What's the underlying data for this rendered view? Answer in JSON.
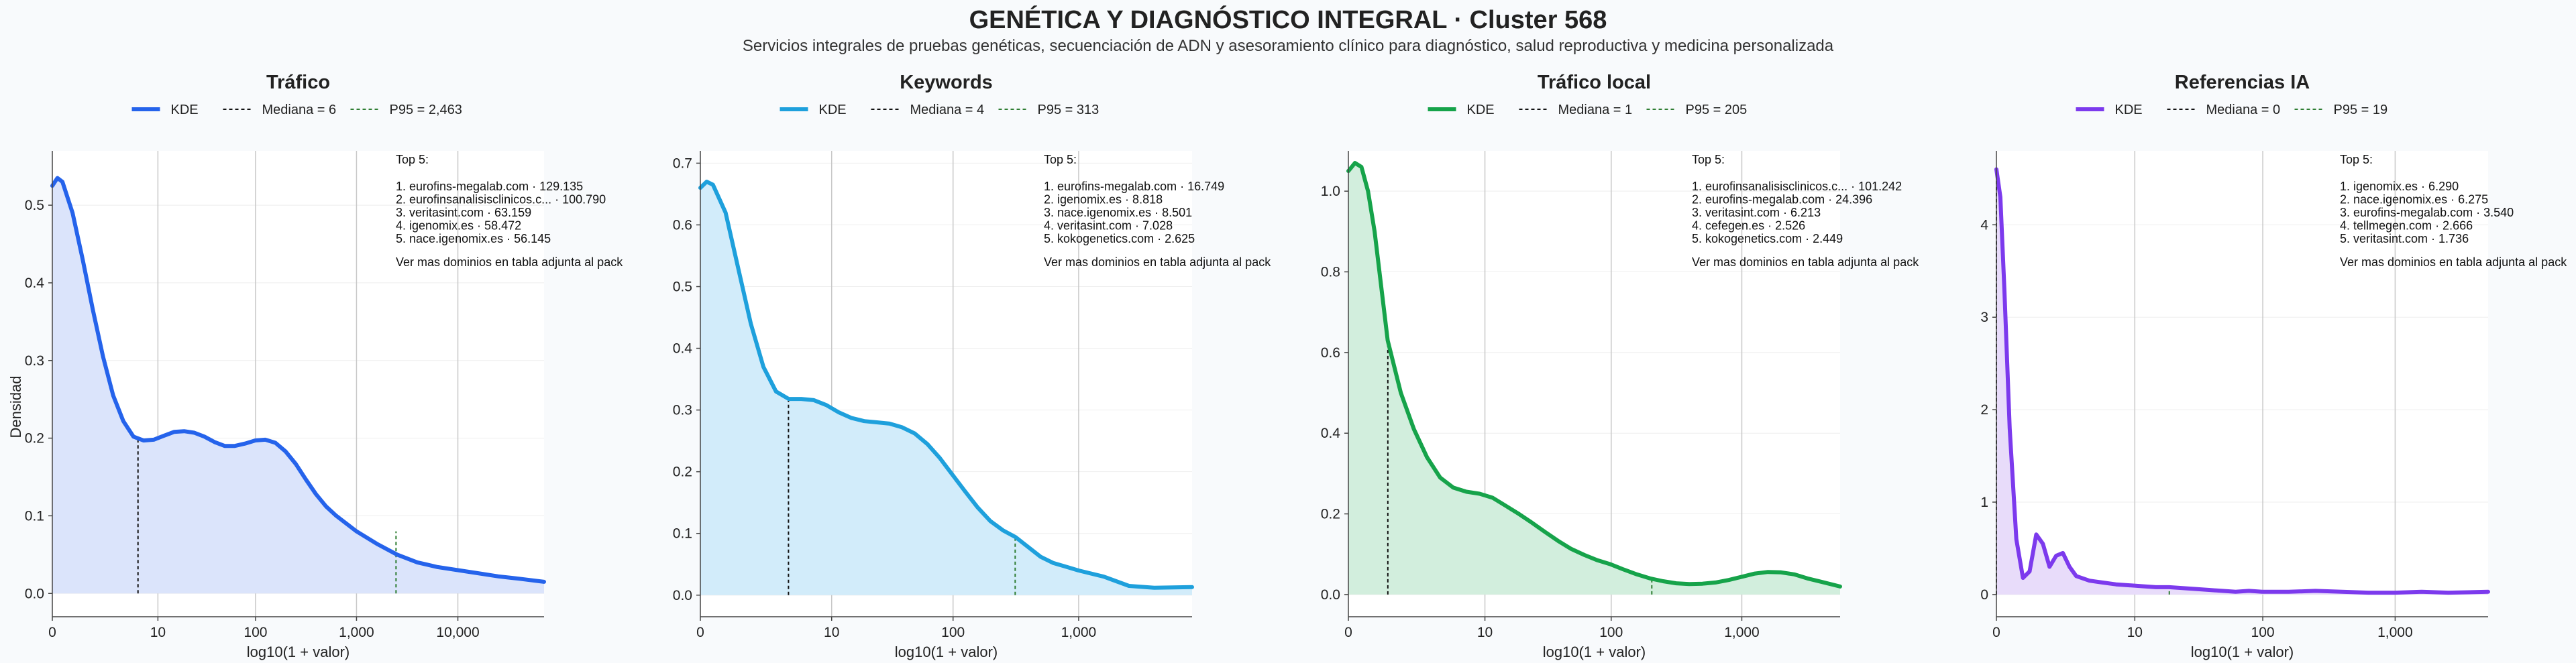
{
  "title": "GENÉTICA Y DIAGNÓSTICO INTEGRAL · Cluster 568",
  "subtitle": "Servicios integrales de pruebas genéticas, secuenciación de ADN y asesoramiento clínico para diagnóstico, salud reproductiva y medicina personalizada",
  "shared_ylabel": "Densidad",
  "chart_data": [
    {
      "type": "area",
      "title": "Tráfico",
      "color": "#2563eb",
      "fill": "#dbe4fb",
      "xlabel": "log10(1 + valor)",
      "ylabel": "Densidad",
      "xlim": [
        0,
        4.85
      ],
      "ylim": [
        -0.03,
        0.57
      ],
      "xscale": "log10(1+x)",
      "xticks": [
        {
          "v": 0,
          "label": "0"
        },
        {
          "v": 1.0414,
          "label": "10"
        },
        {
          "v": 2.0043,
          "label": "100"
        },
        {
          "v": 3.0004,
          "label": "1,000"
        },
        {
          "v": 4.0,
          "label": "10,000"
        }
      ],
      "yticks": [
        {
          "v": 0,
          "label": "0.0"
        },
        {
          "v": 0.1,
          "label": "0.1"
        },
        {
          "v": 0.2,
          "label": "0.2"
        },
        {
          "v": 0.3,
          "label": "0.3"
        },
        {
          "v": 0.4,
          "label": "0.4"
        },
        {
          "v": 0.5,
          "label": "0.5"
        }
      ],
      "legend": {
        "kde": "KDE",
        "median": "Mediana = 6",
        "p95": "P95 = 2,463"
      },
      "median_x": 0.845,
      "median_y": 0.198,
      "p95_x": 3.39,
      "p95_y": 0.08,
      "x": [
        0,
        0.05,
        0.1,
        0.2,
        0.3,
        0.4,
        0.5,
        0.6,
        0.7,
        0.8,
        0.9,
        1.0,
        1.1,
        1.2,
        1.3,
        1.4,
        1.5,
        1.6,
        1.7,
        1.8,
        1.9,
        2.0,
        2.1,
        2.2,
        2.3,
        2.4,
        2.5,
        2.6,
        2.7,
        2.8,
        2.9,
        3.0,
        3.2,
        3.4,
        3.6,
        3.8,
        4.0,
        4.2,
        4.4,
        4.6,
        4.85
      ],
      "y": [
        0.525,
        0.535,
        0.53,
        0.49,
        0.43,
        0.365,
        0.305,
        0.255,
        0.222,
        0.202,
        0.197,
        0.198,
        0.203,
        0.208,
        0.209,
        0.207,
        0.202,
        0.195,
        0.19,
        0.19,
        0.193,
        0.197,
        0.198,
        0.194,
        0.183,
        0.167,
        0.147,
        0.128,
        0.112,
        0.1,
        0.09,
        0.08,
        0.064,
        0.05,
        0.04,
        0.034,
        0.03,
        0.026,
        0.022,
        0.019,
        0.015
      ],
      "top5": {
        "heading": "Top 5:",
        "items": [
          "1. eurofins-megalab.com · 129.135",
          "2. eurofinsanalisisclinicos.c... · 100.790",
          "3. veritasint.com · 63.159",
          "4. igenomix.es · 58.472",
          "5. nace.igenomix.es · 56.145"
        ],
        "footer": "Ver mas dominios en tabla adjunta al pack"
      }
    },
    {
      "type": "area",
      "title": "Keywords",
      "color": "#1ea0dc",
      "fill": "#d2ecfa",
      "xlabel": "log10(1 + valor)",
      "ylabel": "",
      "xlim": [
        0,
        3.9
      ],
      "ylim": [
        -0.035,
        0.72
      ],
      "xscale": "log10(1+x)",
      "xticks": [
        {
          "v": 0,
          "label": "0"
        },
        {
          "v": 1.0414,
          "label": "10"
        },
        {
          "v": 2.0043,
          "label": "100"
        },
        {
          "v": 3.0004,
          "label": "1,000"
        }
      ],
      "yticks": [
        {
          "v": 0,
          "label": "0.0"
        },
        {
          "v": 0.1,
          "label": "0.1"
        },
        {
          "v": 0.2,
          "label": "0.2"
        },
        {
          "v": 0.3,
          "label": "0.3"
        },
        {
          "v": 0.4,
          "label": "0.4"
        },
        {
          "v": 0.5,
          "label": "0.5"
        },
        {
          "v": 0.6,
          "label": "0.6"
        },
        {
          "v": 0.7,
          "label": "0.7"
        }
      ],
      "legend": {
        "kde": "KDE",
        "median": "Mediana = 4",
        "p95": "P95 = 313"
      },
      "median_x": 0.699,
      "median_y": 0.318,
      "p95_x": 2.497,
      "p95_y": 0.098,
      "x": [
        0,
        0.05,
        0.1,
        0.2,
        0.3,
        0.4,
        0.5,
        0.6,
        0.7,
        0.8,
        0.9,
        1.0,
        1.1,
        1.2,
        1.3,
        1.4,
        1.5,
        1.6,
        1.7,
        1.8,
        1.9,
        2.0,
        2.1,
        2.2,
        2.3,
        2.4,
        2.5,
        2.6,
        2.7,
        2.8,
        2.9,
        3.0,
        3.2,
        3.4,
        3.6,
        3.9
      ],
      "y": [
        0.66,
        0.67,
        0.665,
        0.62,
        0.53,
        0.44,
        0.37,
        0.33,
        0.318,
        0.318,
        0.316,
        0.308,
        0.296,
        0.287,
        0.282,
        0.28,
        0.278,
        0.272,
        0.262,
        0.245,
        0.222,
        0.195,
        0.168,
        0.142,
        0.12,
        0.105,
        0.094,
        0.078,
        0.062,
        0.052,
        0.046,
        0.04,
        0.03,
        0.015,
        0.012,
        0.013
      ],
      "top5": {
        "heading": "Top 5:",
        "items": [
          "1. eurofins-megalab.com · 16.749",
          "2. igenomix.es · 8.818",
          "3. nace.igenomix.es · 8.501",
          "4. veritasint.com · 7.028",
          "5. kokogenetics.com · 2.625"
        ],
        "footer": "Ver mas dominios en tabla adjunta al pack"
      }
    },
    {
      "type": "area",
      "title": "Tráfico local",
      "color": "#16a34a",
      "fill": "#d2eedd",
      "xlabel": "log10(1 + valor)",
      "ylabel": "",
      "xlim": [
        0,
        3.75
      ],
      "ylim": [
        -0.055,
        1.1
      ],
      "xscale": "log10(1+x)",
      "xticks": [
        {
          "v": 0,
          "label": "0"
        },
        {
          "v": 1.0414,
          "label": "10"
        },
        {
          "v": 2.0043,
          "label": "100"
        },
        {
          "v": 3.0004,
          "label": "1,000"
        }
      ],
      "yticks": [
        {
          "v": 0,
          "label": "0.0"
        },
        {
          "v": 0.2,
          "label": "0.2"
        },
        {
          "v": 0.4,
          "label": "0.4"
        },
        {
          "v": 0.6,
          "label": "0.6"
        },
        {
          "v": 0.8,
          "label": "0.8"
        },
        {
          "v": 1.0,
          "label": "1.0"
        }
      ],
      "legend": {
        "kde": "KDE",
        "median": "Mediana = 1",
        "p95": "P95 = 205"
      },
      "median_x": 0.301,
      "median_y": 0.63,
      "p95_x": 2.314,
      "p95_y": 0.04,
      "x": [
        0,
        0.05,
        0.1,
        0.15,
        0.2,
        0.3,
        0.4,
        0.5,
        0.6,
        0.7,
        0.8,
        0.9,
        1.0,
        1.1,
        1.2,
        1.3,
        1.4,
        1.5,
        1.6,
        1.7,
        1.8,
        1.9,
        2.0,
        2.1,
        2.2,
        2.3,
        2.4,
        2.5,
        2.6,
        2.7,
        2.8,
        2.9,
        3.0,
        3.1,
        3.2,
        3.3,
        3.4,
        3.5,
        3.6,
        3.75
      ],
      "y": [
        1.05,
        1.07,
        1.06,
        1.0,
        0.9,
        0.63,
        0.5,
        0.41,
        0.34,
        0.29,
        0.265,
        0.255,
        0.25,
        0.24,
        0.22,
        0.2,
        0.178,
        0.155,
        0.133,
        0.113,
        0.098,
        0.085,
        0.075,
        0.062,
        0.05,
        0.04,
        0.033,
        0.028,
        0.026,
        0.027,
        0.03,
        0.036,
        0.044,
        0.052,
        0.056,
        0.055,
        0.05,
        0.04,
        0.032,
        0.02
      ],
      "top5": {
        "heading": "Top 5:",
        "items": [
          "1. eurofinsanalisisclinicos.c... · 101.242",
          "2. eurofins-megalab.com · 24.396",
          "3. veritasint.com · 6.213",
          "4. cefegen.es · 2.526",
          "5. kokogenetics.com · 2.449"
        ],
        "footer": "Ver mas dominios en tabla adjunta al pack"
      }
    },
    {
      "type": "area",
      "title": "Referencias IA",
      "color": "#7c3aed",
      "fill": "#e8dcfa",
      "xlabel": "log10(1 + valor)",
      "ylabel": "",
      "xlim": [
        0,
        3.7
      ],
      "ylim": [
        -0.24,
        4.8
      ],
      "xscale": "log10(1+x)",
      "xticks": [
        {
          "v": 0,
          "label": "0"
        },
        {
          "v": 1.0414,
          "label": "10"
        },
        {
          "v": 2.0043,
          "label": "100"
        },
        {
          "v": 3.0004,
          "label": "1,000"
        }
      ],
      "yticks": [
        {
          "v": 0,
          "label": "0"
        },
        {
          "v": 1,
          "label": "1"
        },
        {
          "v": 2,
          "label": "2"
        },
        {
          "v": 3,
          "label": "3"
        },
        {
          "v": 4,
          "label": "4"
        }
      ],
      "legend": {
        "kde": "KDE",
        "median": "Mediana = 0",
        "p95": "P95 = 19"
      },
      "median_x": 0,
      "median_y": 4.55,
      "p95_x": 1.301,
      "p95_y": 0.07,
      "x": [
        0,
        0.03,
        0.06,
        0.1,
        0.15,
        0.2,
        0.25,
        0.3,
        0.35,
        0.4,
        0.45,
        0.5,
        0.55,
        0.6,
        0.7,
        0.8,
        0.9,
        1.0,
        1.1,
        1.2,
        1.3,
        1.4,
        1.5,
        1.6,
        1.7,
        1.8,
        1.9,
        2.0,
        2.2,
        2.4,
        2.6,
        2.8,
        3.0,
        3.2,
        3.4,
        3.7
      ],
      "y": [
        4.6,
        4.3,
        3.3,
        1.8,
        0.6,
        0.18,
        0.25,
        0.65,
        0.55,
        0.3,
        0.42,
        0.45,
        0.3,
        0.2,
        0.15,
        0.13,
        0.11,
        0.1,
        0.09,
        0.08,
        0.08,
        0.07,
        0.06,
        0.05,
        0.04,
        0.03,
        0.04,
        0.03,
        0.03,
        0.04,
        0.03,
        0.02,
        0.02,
        0.03,
        0.02,
        0.03
      ],
      "top5": {
        "heading": "Top 5:",
        "items": [
          "1. igenomix.es · 6.290",
          "2. nace.igenomix.es · 6.275",
          "3. eurofins-megalab.com · 3.540",
          "4. tellmegen.com · 2.666",
          "5. veritasint.com · 1.736"
        ],
        "footer": "Ver mas dominios en tabla adjunta al pack"
      }
    }
  ]
}
